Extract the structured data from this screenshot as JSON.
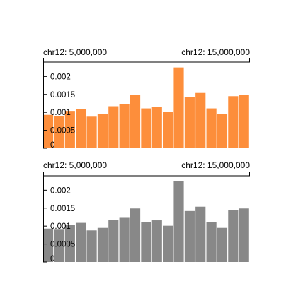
{
  "chart_data": [
    {
      "type": "bar",
      "region_start_label": "chr12: 5,000,000",
      "region_end_label": "chr12: 15,000,000",
      "bar_color": "#FD8E3B",
      "ylim": [
        0,
        0.0024
      ],
      "yticks": [
        0,
        0.0005,
        0.001,
        0.0015,
        0.002
      ],
      "ytick_labels": [
        "0",
        "0.0005",
        "0.001",
        "0.0015",
        "0.002"
      ],
      "values": [
        0.00093,
        0.0009,
        0.00104,
        0.00109,
        0.00088,
        0.00095,
        0.00117,
        0.00123,
        0.00149,
        0.00111,
        0.00116,
        0.00101,
        0.00225,
        0.00142,
        0.00154,
        0.00111,
        0.00095,
        0.00145,
        0.00149
      ]
    },
    {
      "type": "bar",
      "region_start_label": "chr12: 5,000,000",
      "region_end_label": "chr12: 15,000,000",
      "bar_color": "#888888",
      "ylim": [
        0,
        0.0024
      ],
      "yticks": [
        0,
        0.0005,
        0.001,
        0.0015,
        0.002
      ],
      "ytick_labels": [
        "0",
        "0.0005",
        "0.001",
        "0.0015",
        "0.002"
      ],
      "values": [
        0.00093,
        0.0009,
        0.00104,
        0.00109,
        0.00088,
        0.00095,
        0.00117,
        0.00123,
        0.00149,
        0.00111,
        0.00116,
        0.00101,
        0.00225,
        0.00142,
        0.00154,
        0.00111,
        0.00095,
        0.00145,
        0.00149
      ]
    }
  ]
}
